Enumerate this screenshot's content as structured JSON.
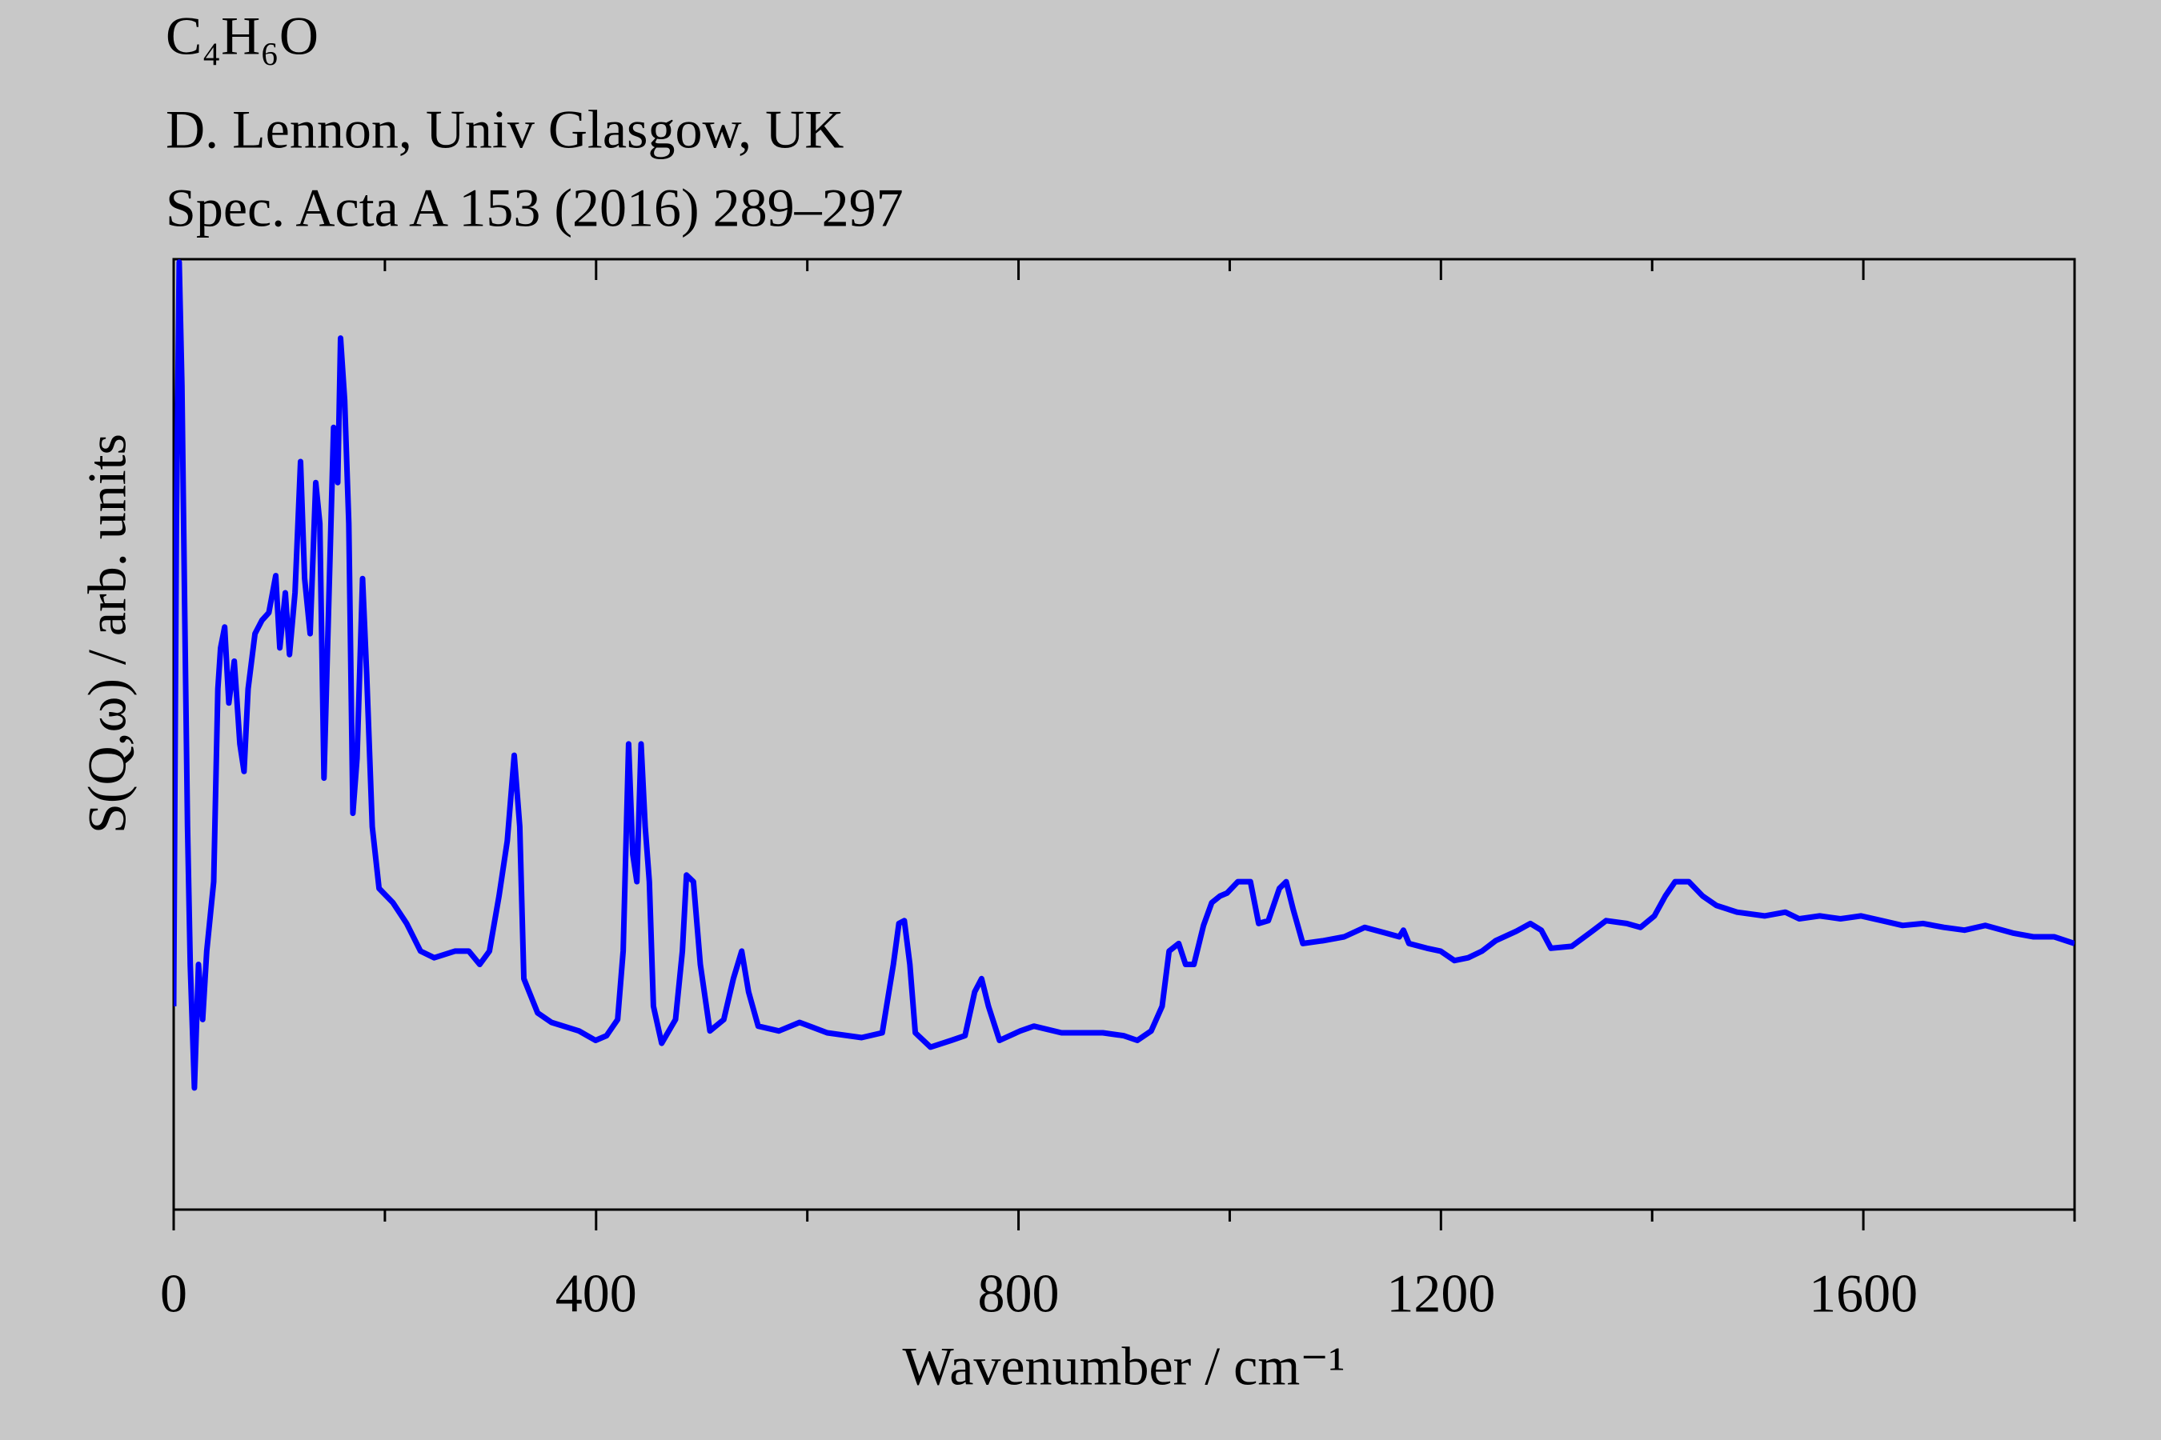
{
  "chart_data": {
    "type": "line",
    "title": "C₄H₆O",
    "subtitle": [
      "D. Lennon, Univ Glasgow, UK",
      "Spec. Acta A 153 (2016) 289–297"
    ],
    "xlabel": "Wavenumber / cm⁻¹",
    "ylabel": "S(Q,ω) / arb. units",
    "xlim": [
      0,
      1800
    ],
    "xticks": [
      0,
      400,
      800,
      1200,
      1600
    ],
    "xminorticks": [
      200,
      600,
      1000,
      1400,
      1800
    ],
    "ylim": [
      0,
      100
    ],
    "color": "#0000ff",
    "x": [
      0,
      2.6,
      5.2,
      7.8,
      10.4,
      13.1,
      15.7,
      19.6,
      23.5,
      27.4,
      31.3,
      37.9,
      41.8,
      44.4,
      48.3,
      52.2,
      57.4,
      62.7,
      66.6,
      70.5,
      77.0,
      83.6,
      90.1,
      96.6,
      100.5,
      105.7,
      109.7,
      114.9,
      120.1,
      124.0,
      129.2,
      134.5,
      138.4,
      142.3,
      147.5,
      151.4,
      155.4,
      158.0,
      161.9,
      165.8,
      169.7,
      173.6,
      178.9,
      182.8,
      188.0,
      194.5,
      207.6,
      220.6,
      233.7,
      246.7,
      266.3,
      279.4,
      289.8,
      299.0,
      308.1,
      315.9,
      322.5,
      327.7,
      331.6,
      344.6,
      357.7,
      383.8,
      399.5,
      409.9,
      420.4,
      425.6,
      430.8,
      434.7,
      438.6,
      442.6,
      446.5,
      450.4,
      454.3,
      462.1,
      475.2,
      481.7,
      485.6,
      492.2,
      498.7,
      507.8,
      520.9,
      530.0,
      537.9,
      544.4,
      553.5,
      573.1,
      592.7,
      618.8,
      651.4,
      671.0,
      681.5,
      686.7,
      691.9,
      697.1,
      702.3,
      716.7,
      736.3,
      749.3,
      758.5,
      765.0,
      771.5,
      782.0,
      801.6,
      814.6,
      840.7,
      879.9,
      899.5,
      912.5,
      925.6,
      936.0,
      942.6,
      951.7,
      958.2,
      966.1,
      975.2,
      983.0,
      990.9,
      997.4,
      1007.8,
      1019.6,
      1027.4,
      1036.6,
      1047.0,
      1053.5,
      1060.1,
      1069.2,
      1088.8,
      1108.4,
      1127.9,
      1147.5,
      1160.6,
      1164.5,
      1169.7,
      1186.7,
      1199.7,
      1212.8,
      1225.8,
      1238.9,
      1251.9,
      1271.5,
      1284.6,
      1295.0,
      1304.2,
      1323.8,
      1343.3,
      1356.4,
      1376.0,
      1389.0,
      1402.1,
      1412.5,
      1421.7,
      1434.7,
      1447.8,
      1460.8,
      1480.4,
      1506.5,
      1526.1,
      1539.2,
      1558.7,
      1578.3,
      1597.9,
      1617.5,
      1637.1,
      1656.7,
      1676.2,
      1695.8,
      1715.4,
      1741.5,
      1761.1,
      1780.7,
      1800
    ],
    "values": [
      21.4,
      72.2,
      99.7,
      86.7,
      63.5,
      40.3,
      25.8,
      12.8,
      25.8,
      20.0,
      27.2,
      34.5,
      54.8,
      59.1,
      61.3,
      53.3,
      57.7,
      49.0,
      46.1,
      54.8,
      60.6,
      62.0,
      62.8,
      66.7,
      59.1,
      64.9,
      58.4,
      64.9,
      78.7,
      66.4,
      60.6,
      76.5,
      72.2,
      45.4,
      66.4,
      82.3,
      76.5,
      91.7,
      85.2,
      72.2,
      41.7,
      47.5,
      66.4,
      56.2,
      40.3,
      33.8,
      32.3,
      30.1,
      27.2,
      26.5,
      27.2,
      27.2,
      25.8,
      27.2,
      33.0,
      38.8,
      47.8,
      40.3,
      24.3,
      20.7,
      19.7,
      18.8,
      17.8,
      18.3,
      20.0,
      27.2,
      49.0,
      37.4,
      34.5,
      49.0,
      40.3,
      34.5,
      21.4,
      17.5,
      20.0,
      27.2,
      35.2,
      34.5,
      25.8,
      18.8,
      20.0,
      24.3,
      27.2,
      22.9,
      19.3,
      18.8,
      19.7,
      18.6,
      18.1,
      18.6,
      25.8,
      30.1,
      30.4,
      25.8,
      18.6,
      17.1,
      17.8,
      18.3,
      22.9,
      24.3,
      21.4,
      17.8,
      18.8,
      19.3,
      18.6,
      18.6,
      18.3,
      17.8,
      18.8,
      21.4,
      27.2,
      28.0,
      25.8,
      25.8,
      29.9,
      32.3,
      33.0,
      33.3,
      34.5,
      34.5,
      30.1,
      30.4,
      33.8,
      34.5,
      31.6,
      28.0,
      28.3,
      28.7,
      29.7,
      29.1,
      28.7,
      29.4,
      28.0,
      27.5,
      27.2,
      26.2,
      26.5,
      27.2,
      28.3,
      29.3,
      30.1,
      29.4,
      27.5,
      27.7,
      29.3,
      30.4,
      30.1,
      29.7,
      30.9,
      33.0,
      34.5,
      34.5,
      33.0,
      32.0,
      31.3,
      30.9,
      31.3,
      30.6,
      30.9,
      30.6,
      30.9,
      30.4,
      29.9,
      30.1,
      29.7,
      29.4,
      29.9,
      29.1,
      28.7,
      28.7,
      28.0
    ]
  }
}
